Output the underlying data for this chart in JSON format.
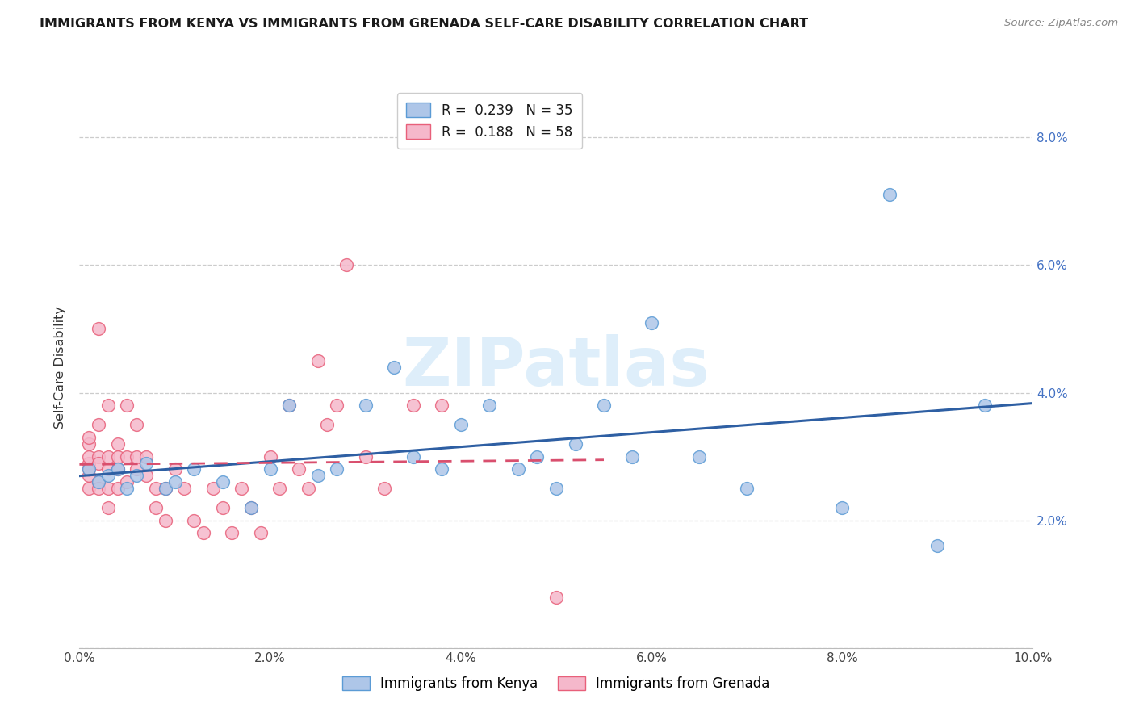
{
  "title": "IMMIGRANTS FROM KENYA VS IMMIGRANTS FROM GRENADA SELF-CARE DISABILITY CORRELATION CHART",
  "source": "Source: ZipAtlas.com",
  "ylabel": "Self-Care Disability",
  "xlim": [
    0.0,
    0.1
  ],
  "ylim": [
    0.0,
    0.088
  ],
  "xticks": [
    0.0,
    0.02,
    0.04,
    0.06,
    0.08,
    0.1
  ],
  "yticks": [
    0.0,
    0.02,
    0.04,
    0.06,
    0.08
  ],
  "right_ytick_labels": [
    "",
    "2.0%",
    "4.0%",
    "6.0%",
    "8.0%"
  ],
  "kenya_color": "#aec6e8",
  "grenada_color": "#f5b8cb",
  "kenya_edge": "#5b9bd5",
  "grenada_edge": "#e8607a",
  "trendline_kenya_color": "#2e5fa3",
  "trendline_grenada_color": "#d94f6e",
  "trendline_grenada_style": "--",
  "legend_kenya_label": "Immigrants from Kenya",
  "legend_grenada_label": "Immigrants from Grenada",
  "legend_R_kenya": "0.239",
  "legend_N_kenya": "35",
  "legend_R_grenada": "0.188",
  "legend_N_grenada": "58",
  "watermark": "ZIPatlas",
  "watermark_color": "#d0e8f8",
  "kenya_x": [
    0.001,
    0.002,
    0.003,
    0.004,
    0.005,
    0.006,
    0.007,
    0.009,
    0.01,
    0.012,
    0.015,
    0.018,
    0.02,
    0.022,
    0.025,
    0.027,
    0.03,
    0.033,
    0.035,
    0.038,
    0.04,
    0.043,
    0.046,
    0.048,
    0.05,
    0.052,
    0.055,
    0.058,
    0.06,
    0.065,
    0.07,
    0.08,
    0.085,
    0.09,
    0.095
  ],
  "kenya_y": [
    0.028,
    0.026,
    0.027,
    0.028,
    0.025,
    0.027,
    0.029,
    0.025,
    0.026,
    0.028,
    0.026,
    0.022,
    0.028,
    0.038,
    0.027,
    0.028,
    0.038,
    0.044,
    0.03,
    0.028,
    0.035,
    0.038,
    0.028,
    0.03,
    0.025,
    0.032,
    0.038,
    0.03,
    0.051,
    0.03,
    0.025,
    0.022,
    0.071,
    0.016,
    0.038
  ],
  "grenada_x": [
    0.001,
    0.001,
    0.001,
    0.001,
    0.001,
    0.001,
    0.001,
    0.002,
    0.002,
    0.002,
    0.002,
    0.002,
    0.002,
    0.003,
    0.003,
    0.003,
    0.003,
    0.003,
    0.004,
    0.004,
    0.004,
    0.004,
    0.005,
    0.005,
    0.005,
    0.006,
    0.006,
    0.006,
    0.007,
    0.007,
    0.008,
    0.008,
    0.009,
    0.009,
    0.01,
    0.011,
    0.012,
    0.013,
    0.014,
    0.015,
    0.016,
    0.017,
    0.018,
    0.019,
    0.02,
    0.021,
    0.022,
    0.023,
    0.024,
    0.025,
    0.026,
    0.027,
    0.028,
    0.03,
    0.032,
    0.035,
    0.038,
    0.05
  ],
  "grenada_y": [
    0.032,
    0.029,
    0.027,
    0.025,
    0.028,
    0.03,
    0.033,
    0.05,
    0.035,
    0.03,
    0.026,
    0.025,
    0.029,
    0.038,
    0.03,
    0.028,
    0.025,
    0.022,
    0.032,
    0.03,
    0.028,
    0.025,
    0.038,
    0.03,
    0.026,
    0.035,
    0.03,
    0.028,
    0.03,
    0.027,
    0.025,
    0.022,
    0.025,
    0.02,
    0.028,
    0.025,
    0.02,
    0.018,
    0.025,
    0.022,
    0.018,
    0.025,
    0.022,
    0.018,
    0.03,
    0.025,
    0.038,
    0.028,
    0.025,
    0.045,
    0.035,
    0.038,
    0.06,
    0.03,
    0.025,
    0.038,
    0.038,
    0.008
  ]
}
